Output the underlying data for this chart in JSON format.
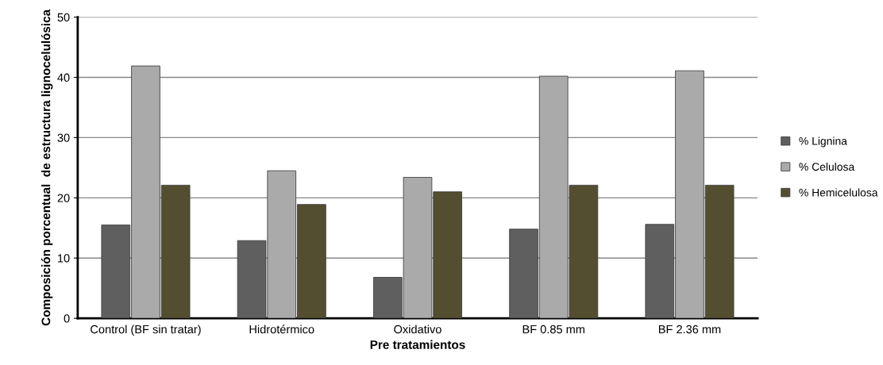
{
  "chart_data": {
    "type": "bar",
    "xlabel": "Pre tratamientos",
    "ylabel": "Composición porcentual  de estructura lignocelulósica",
    "categories": [
      "Control (BF sin tratar)",
      "Hidrotérmico",
      "Oxidativo",
      "BF 0.85 mm",
      "BF 2.36 mm"
    ],
    "series": [
      {
        "name": "% Lignina",
        "color": "#5f5f5f",
        "values": [
          15.5,
          12.9,
          6.8,
          14.8,
          15.6
        ]
      },
      {
        "name": "% Celulosa",
        "color": "#aaaaaa",
        "values": [
          41.9,
          24.5,
          23.4,
          40.2,
          41.1
        ]
      },
      {
        "name": "% Hemicelulosa",
        "color": "#534e30",
        "values": [
          22.1,
          18.9,
          21.0,
          22.1,
          22.1
        ]
      }
    ],
    "ylim": [
      0,
      50
    ],
    "yticks": [
      0,
      10,
      20,
      30,
      40,
      50
    ],
    "grid": "y",
    "legend": "right"
  }
}
